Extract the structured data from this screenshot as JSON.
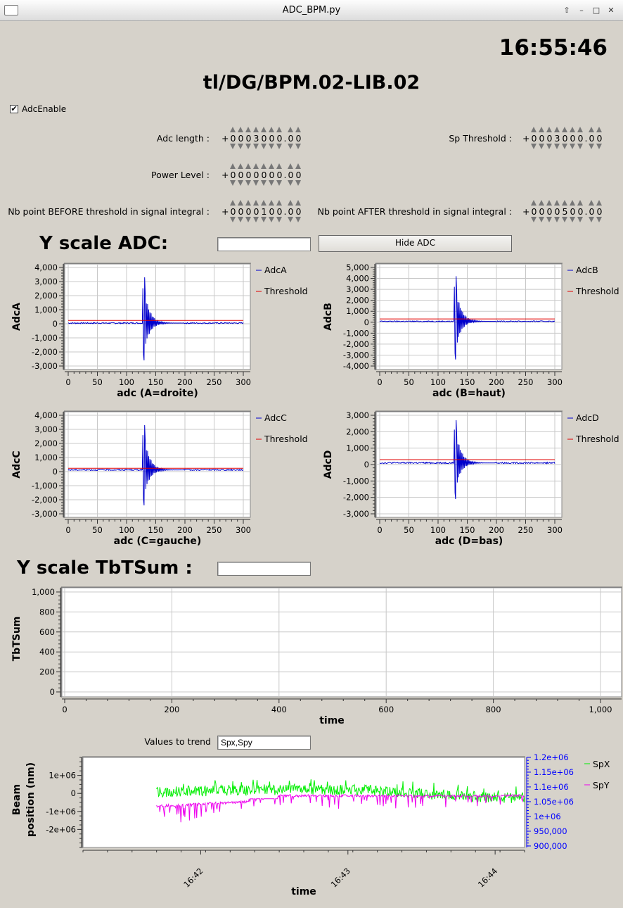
{
  "window": {
    "title": "ADC_BPM.py"
  },
  "clock": "16:55:46",
  "device": "tl/DG/BPM.02-LIB.02",
  "adc_enable": {
    "label": "AdcEnable",
    "checked": true,
    "check_glyph": "✔"
  },
  "params": {
    "adc_length": {
      "label": "Adc length :",
      "sign": "+",
      "digits": "0003000",
      "decimals": "00"
    },
    "sp_threshold": {
      "label": "Sp Threshold :",
      "sign": "+",
      "digits": "0003000",
      "decimals": "00"
    },
    "power_level": {
      "label": "Power Level :",
      "sign": "+",
      "digits": "0000000",
      "decimals": "00"
    },
    "nb_before": {
      "label": "Nb point BEFORE threshold in signal integral :",
      "sign": "+",
      "digits": "0000100",
      "decimals": "00"
    },
    "nb_after": {
      "label": "Nb point AFTER threshold in signal integral :",
      "sign": "+",
      "digits": "0000500",
      "decimals": "00"
    }
  },
  "y_scale_adc": {
    "label": "Y scale ADC:",
    "value": ""
  },
  "hide_adc_button": "Hide ADC",
  "y_scale_tbt": {
    "label": "Y scale TbTSum :",
    "value": ""
  },
  "trend": {
    "label": "Values to trend",
    "value": "Spx,Spy"
  },
  "colors": {
    "adc": "#0000cc",
    "threshold": "#e00000",
    "spx": "#00ee00",
    "spy": "#ee00ee",
    "right_axis": "#0000ff"
  },
  "chart_data": [
    {
      "id": "adcA",
      "type": "line",
      "ylabel": "AdcA",
      "xlabel": "adc  (A=droite)",
      "xlim": [
        0,
        300
      ],
      "ylim": [
        -3000,
        4000
      ],
      "xticks": [
        "0",
        "50",
        "100",
        "150",
        "200",
        "250",
        "300"
      ],
      "yticks": [
        "-3,000",
        "-2,000",
        "-1,000",
        "0",
        "1,000",
        "2,000",
        "3,000",
        "4,000"
      ],
      "series": [
        {
          "name": "AdcA",
          "baseline": 50,
          "pulse_start": 128,
          "peak": 3300,
          "trough": -2600
        },
        {
          "name": "Threshold",
          "value": 240
        }
      ]
    },
    {
      "id": "adcB",
      "type": "line",
      "ylabel": "AdcB",
      "xlabel": "adc  (B=haut)",
      "xlim": [
        0,
        300
      ],
      "ylim": [
        -4000,
        5000
      ],
      "xticks": [
        "0",
        "50",
        "100",
        "150",
        "200",
        "250",
        "300"
      ],
      "yticks": [
        "-4,000",
        "-3,000",
        "-2,000",
        "-1,000",
        "0",
        "1,000",
        "2,000",
        "3,000",
        "4,000",
        "5,000"
      ],
      "series": [
        {
          "name": "AdcB",
          "baseline": 80,
          "pulse_start": 128,
          "peak": 4200,
          "trough": -3400
        },
        {
          "name": "Threshold",
          "value": 300
        }
      ]
    },
    {
      "id": "adcC",
      "type": "line",
      "ylabel": "AdcC",
      "xlabel": "adc  (C=gauche)",
      "xlim": [
        0,
        300
      ],
      "ylim": [
        -3000,
        4000
      ],
      "xticks": [
        "0",
        "50",
        "100",
        "150",
        "200",
        "250",
        "300"
      ],
      "yticks": [
        "-3,000",
        "-2,000",
        "-1,000",
        "0",
        "1,000",
        "2,000",
        "3,000",
        "4,000"
      ],
      "series": [
        {
          "name": "AdcC",
          "baseline": 120,
          "pulse_start": 128,
          "peak": 3300,
          "trough": -2400
        },
        {
          "name": "Threshold",
          "value": 240
        }
      ]
    },
    {
      "id": "adcD",
      "type": "line",
      "ylabel": "AdcD",
      "xlabel": "adc  (D=bas)",
      "xlim": [
        0,
        300
      ],
      "ylim": [
        -3000,
        3000
      ],
      "xticks": [
        "0",
        "50",
        "100",
        "150",
        "200",
        "250",
        "300"
      ],
      "yticks": [
        "-3,000",
        "-2,000",
        "-1,000",
        "0",
        "1,000",
        "2,000",
        "3,000"
      ],
      "series": [
        {
          "name": "AdcD",
          "baseline": 100,
          "pulse_start": 128,
          "peak": 2700,
          "trough": -2100
        },
        {
          "name": "Threshold",
          "value": 300
        }
      ]
    },
    {
      "id": "tbt",
      "type": "line",
      "ylabel": "TbTSum",
      "xlabel": "time",
      "xlim": [
        0,
        1000
      ],
      "ylim": [
        0,
        1000
      ],
      "xticks": [
        "0",
        "200",
        "400",
        "600",
        "800",
        "1,000"
      ],
      "yticks": [
        "0",
        "200",
        "400",
        "600",
        "800",
        "1,000"
      ],
      "series": []
    },
    {
      "id": "trend",
      "type": "line",
      "ylabel": "Beam position (nm)",
      "ylabel_lines": [
        "Beam",
        "position (nm)"
      ],
      "xlabel": "time",
      "xlim": [
        "16:41:12",
        "16:44:12"
      ],
      "ylim": [
        -3000000,
        2000000
      ],
      "yticks": [
        "-2e+06",
        "-1e+06",
        "0",
        "1e+06"
      ],
      "y2lim": [
        895000,
        1200000
      ],
      "y2ticks": [
        "900,000",
        "950,000",
        "1e+06",
        "1.05e+06",
        "1.1e+06",
        "1.15e+06",
        "1.2e+06"
      ],
      "xticks": [
        "16:42",
        "16:43",
        "16:44"
      ],
      "series": [
        {
          "name": "SpX",
          "start": "16:41:42",
          "end": "16:44:12",
          "mean": 0
        },
        {
          "name": "SpY",
          "start": "16:41:42",
          "end": "16:44:12",
          "mean": 1070000
        }
      ]
    }
  ]
}
